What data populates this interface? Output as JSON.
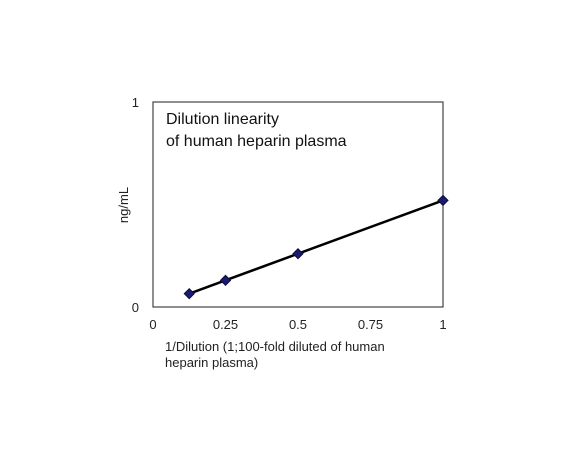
{
  "chart_data": {
    "type": "line",
    "title_lines": [
      "Dilution linearity",
      "of human heparin plasma"
    ],
    "xlabel_lines": [
      "1/Dilution (1;100-fold diluted of  human",
      "heparin plasma)"
    ],
    "ylabel": "ng/mL",
    "x_ticks": [
      "0",
      "0.25",
      "0.5",
      "0.75",
      "1"
    ],
    "y_ticks": [
      "0",
      "1"
    ],
    "xlim": [
      0,
      1
    ],
    "ylim": [
      0,
      1
    ],
    "grid": false,
    "line_color": "#000000",
    "marker_color": "#1a1a6e",
    "marker": "diamond",
    "series": [
      {
        "x": [
          0.125,
          0.25,
          0.5,
          1
        ],
        "y": [
          0.065,
          0.13,
          0.26,
          0.52
        ]
      }
    ]
  }
}
